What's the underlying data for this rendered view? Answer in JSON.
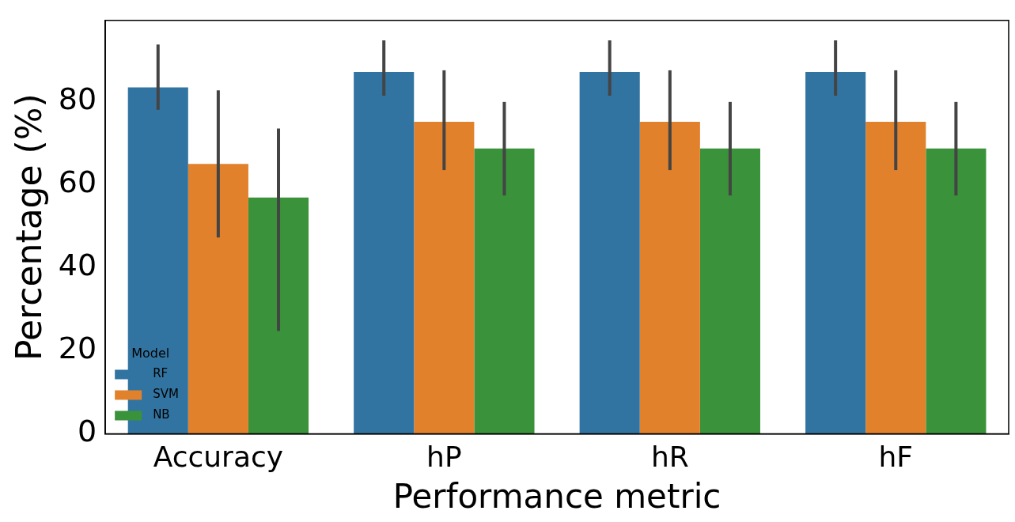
{
  "chart_data": {
    "type": "bar",
    "xlabel": "Performance metric",
    "ylabel": "Percentage (%)",
    "legend_title": "Model",
    "legend": "bottom left",
    "grid": false,
    "categories": [
      "Accuracy",
      "hP",
      "hR",
      "hF"
    ],
    "series": [
      {
        "name": "RF",
        "color": "#3274a1",
        "values": [
          83.3,
          87.0,
          87.0,
          87.0
        ],
        "errors": [
          [
            77.9,
            93.6
          ],
          [
            81.3,
            94.6
          ],
          [
            81.3,
            94.6
          ],
          [
            81.3,
            94.6
          ]
        ]
      },
      {
        "name": "SVM",
        "color": "#e1812c",
        "values": [
          64.9,
          75.0,
          75.0,
          75.0
        ],
        "errors": [
          [
            47.2,
            82.6
          ],
          [
            63.4,
            87.4
          ],
          [
            63.4,
            87.4
          ],
          [
            63.4,
            87.4
          ]
        ]
      },
      {
        "name": "NB",
        "color": "#3a923a",
        "values": [
          56.8,
          68.6,
          68.6,
          68.6
        ],
        "errors": [
          [
            24.7,
            73.4
          ],
          [
            57.3,
            79.8
          ],
          [
            57.3,
            79.8
          ],
          [
            57.3,
            79.8
          ]
        ]
      }
    ],
    "ylim": [
      0,
      99.4
    ],
    "yticks": [
      0,
      20,
      40,
      60,
      80
    ]
  }
}
